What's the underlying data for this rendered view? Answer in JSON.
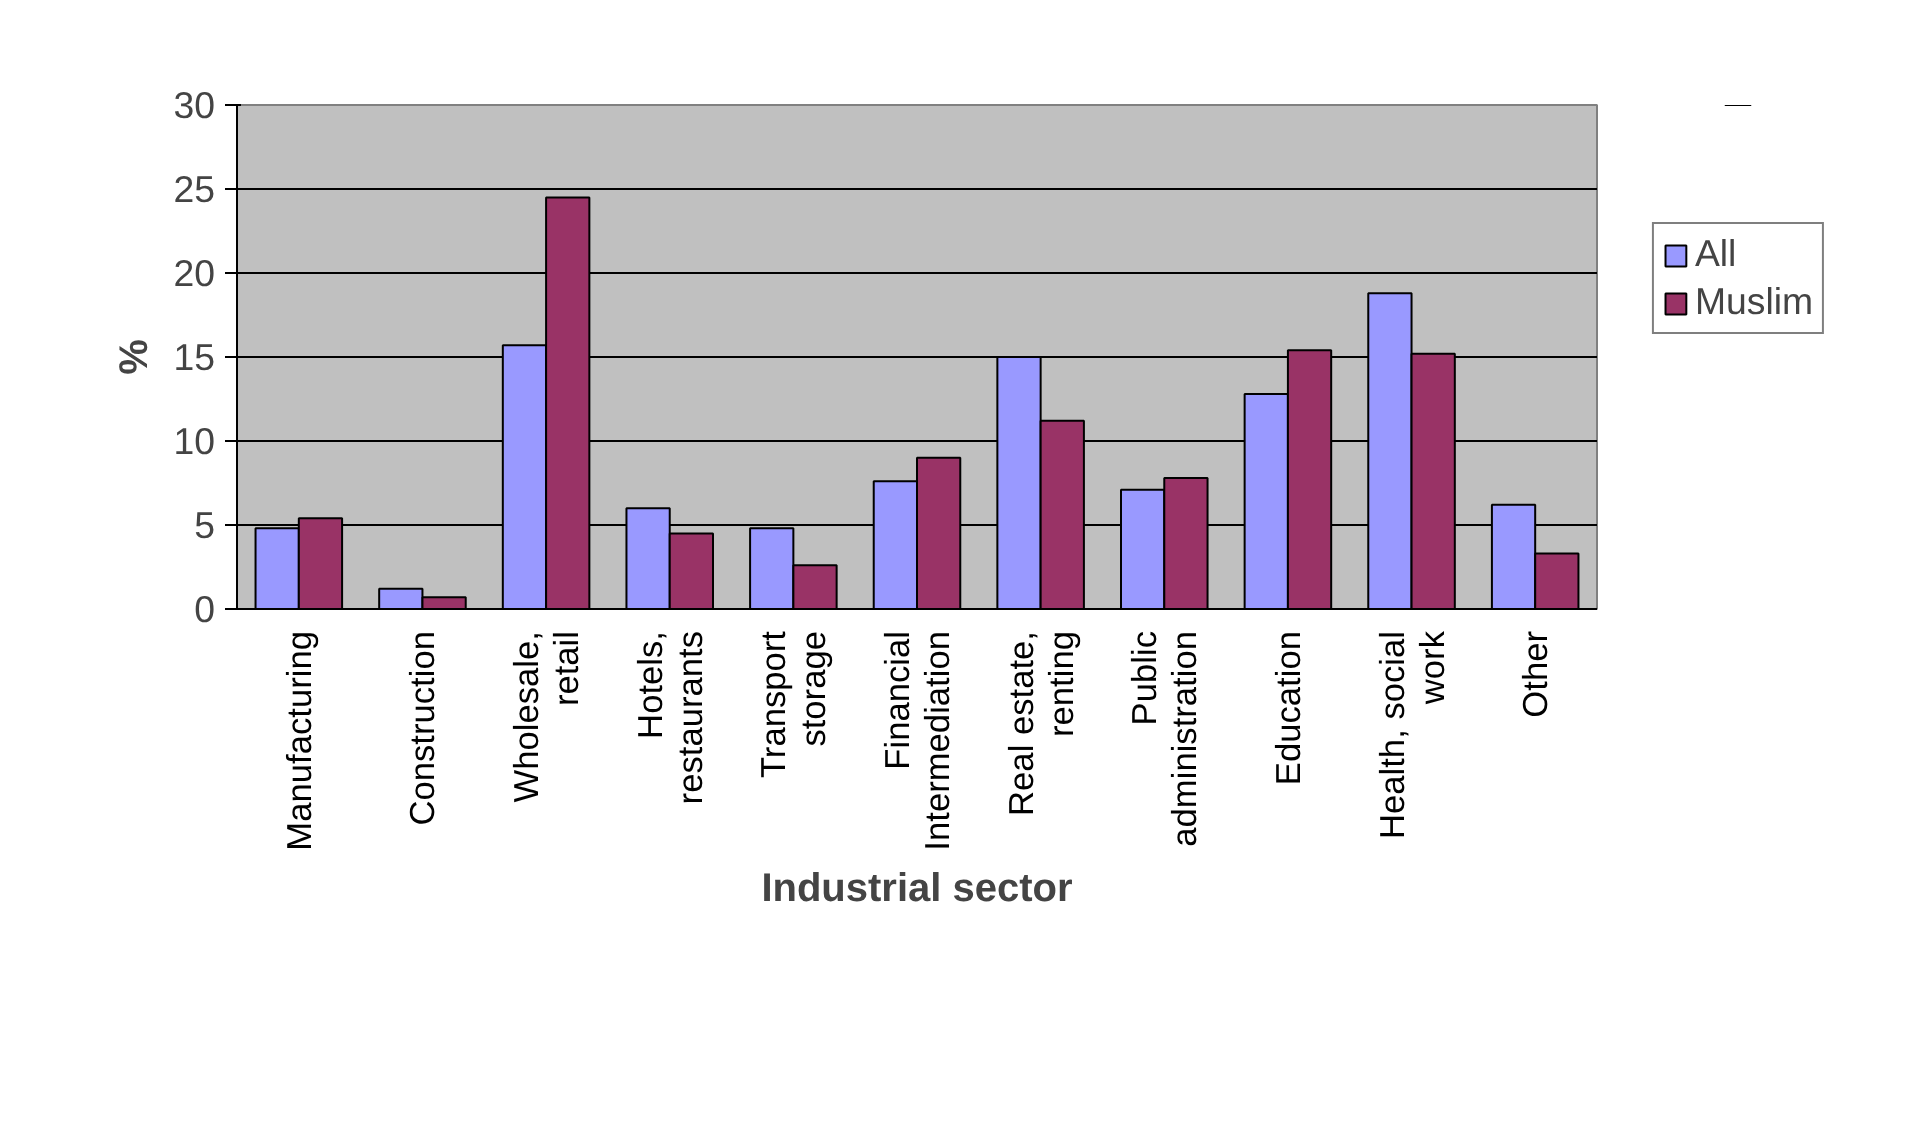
{
  "chart_data": {
    "type": "bar",
    "xlabel": "Industrial sector",
    "ylabel": "%",
    "categories": [
      "Manufacturing",
      "Construction",
      "Wholesale, retail",
      "Hotels, restaurants",
      "Transport storage",
      "Financial Intermediation",
      "Real estate, renting",
      "Public administration",
      "Education",
      "Health, social work",
      "Other"
    ],
    "series": [
      {
        "name": "All",
        "color": "#9999ff",
        "values": [
          4.8,
          1.2,
          15.7,
          6.0,
          4.8,
          7.6,
          15.0,
          7.1,
          12.8,
          18.8,
          6.2
        ]
      },
      {
        "name": "Muslim",
        "color": "#993366",
        "values": [
          5.4,
          0.7,
          24.5,
          4.5,
          2.6,
          9.0,
          11.2,
          7.8,
          15.4,
          15.2,
          3.3
        ]
      }
    ],
    "ylim": [
      0,
      30
    ],
    "yticks": [
      0,
      5,
      10,
      15,
      20,
      25,
      30
    ],
    "grid": "y",
    "legend": "right"
  }
}
